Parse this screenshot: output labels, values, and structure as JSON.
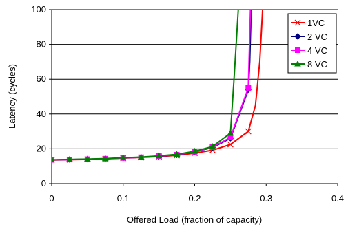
{
  "chart_data": {
    "type": "line",
    "title": "",
    "xlabel": "Offered Load (fraction of capacity)",
    "ylabel": "Latency (cycles)",
    "xlim": [
      0,
      0.4
    ],
    "ylim": [
      0,
      100
    ],
    "xticks": [
      "0",
      "0.1",
      "0.2",
      "0.3",
      "0.4"
    ],
    "yticks": [
      "0",
      "20",
      "40",
      "60",
      "80",
      "100"
    ],
    "grid": "horizontal major gridlines",
    "legend_position": "top-right",
    "series": [
      {
        "name": "1VC",
        "color": "#ff0000",
        "marker": "x",
        "points": [
          [
            0.0,
            13.5
          ],
          [
            0.025,
            13.7
          ],
          [
            0.05,
            13.9
          ],
          [
            0.075,
            14.2
          ],
          [
            0.1,
            14.6
          ],
          [
            0.125,
            15.0
          ],
          [
            0.15,
            15.5
          ],
          [
            0.175,
            16.2
          ],
          [
            0.2,
            17.5
          ],
          [
            0.225,
            19.2
          ],
          [
            0.25,
            22.5
          ],
          [
            0.275,
            30.0
          ]
        ],
        "tail": [
          [
            0.285,
            45.0
          ],
          [
            0.291,
            70.0
          ],
          [
            0.295,
            100.0
          ]
        ]
      },
      {
        "name": "2 VC",
        "color": "#000080",
        "marker": "diamond",
        "points": [
          [
            0.0,
            13.6
          ],
          [
            0.025,
            13.8
          ],
          [
            0.05,
            14.0
          ],
          [
            0.075,
            14.3
          ],
          [
            0.1,
            14.7
          ],
          [
            0.125,
            15.1
          ],
          [
            0.15,
            15.7
          ],
          [
            0.175,
            16.5
          ],
          [
            0.2,
            18.2
          ],
          [
            0.225,
            20.8
          ],
          [
            0.25,
            26.0
          ],
          [
            0.275,
            54.0
          ]
        ],
        "tail": [
          [
            0.277,
            70.0
          ],
          [
            0.279,
            100.0
          ]
        ]
      },
      {
        "name": "4 VC",
        "color": "#ff00ff",
        "marker": "square",
        "points": [
          [
            0.0,
            13.6
          ],
          [
            0.025,
            13.8
          ],
          [
            0.05,
            14.0
          ],
          [
            0.075,
            14.3
          ],
          [
            0.1,
            14.7
          ],
          [
            0.125,
            15.1
          ],
          [
            0.15,
            15.8
          ],
          [
            0.175,
            16.6
          ],
          [
            0.2,
            18.3
          ],
          [
            0.225,
            21.0
          ],
          [
            0.25,
            26.5
          ],
          [
            0.275,
            55.0
          ]
        ],
        "tail": [
          [
            0.276,
            70.0
          ],
          [
            0.278,
            100.0
          ]
        ]
      },
      {
        "name": "8 VC",
        "color": "#008000",
        "marker": "triangle",
        "points": [
          [
            0.0,
            13.7
          ],
          [
            0.025,
            13.9
          ],
          [
            0.05,
            14.1
          ],
          [
            0.075,
            14.4
          ],
          [
            0.1,
            14.8
          ],
          [
            0.125,
            15.2
          ],
          [
            0.15,
            15.9
          ],
          [
            0.175,
            16.8
          ],
          [
            0.2,
            18.6
          ],
          [
            0.225,
            21.3
          ],
          [
            0.25,
            29.0
          ]
        ],
        "tail": [
          [
            0.255,
            60.0
          ],
          [
            0.258,
            80.0
          ],
          [
            0.261,
            100.0
          ]
        ]
      }
    ]
  }
}
